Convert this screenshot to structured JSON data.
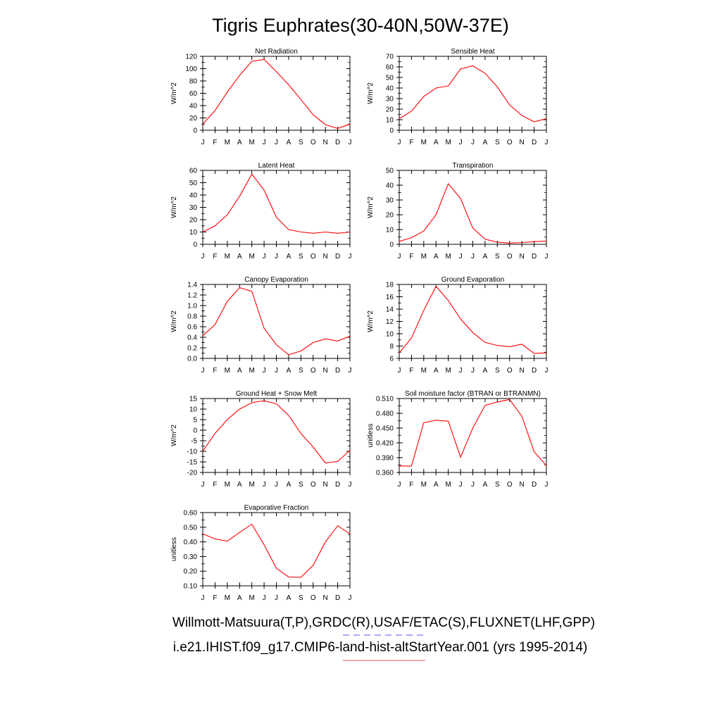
{
  "figure": {
    "title": "Tigris Euphrates(30-40N,50W-37E)",
    "footer_line1": "Willmott-Matsuura(T,P),GRDC(R),USAF/ETAC(S),FLUXNET(LHF,GPP)",
    "footer_line2": "i.e21.IHIST.f09_g17.CMIP6-land-hist-altStartYear.001 (yrs 1995-2014)",
    "footer_line1_style": "dashed",
    "footer_line2_style": "solid",
    "footer_line1_color": "#7777ee",
    "footer_line2_color": "#ee7777",
    "line_color": "#ff0000"
  },
  "chart_data": [
    {
      "type": "line",
      "title": "Net Radiation",
      "ylabel": "W/m^2",
      "categories": [
        "J",
        "F",
        "M",
        "A",
        "M",
        "J",
        "J",
        "A",
        "S",
        "O",
        "N",
        "D",
        "J"
      ],
      "yticks": [
        "0",
        "20",
        "40",
        "60",
        "80",
        "100",
        "120"
      ],
      "ylim": [
        0,
        120
      ],
      "values": [
        10,
        32,
        62,
        89,
        112,
        115,
        95,
        74,
        50,
        25,
        9,
        3,
        10
      ]
    },
    {
      "type": "line",
      "title": "Sensible Heat",
      "ylabel": "W/m^2",
      "categories": [
        "J",
        "F",
        "M",
        "A",
        "M",
        "J",
        "J",
        "A",
        "S",
        "O",
        "N",
        "D",
        "J"
      ],
      "yticks": [
        "0",
        "10",
        "20",
        "30",
        "40",
        "50",
        "60",
        "70"
      ],
      "ylim": [
        0,
        70
      ],
      "values": [
        11,
        18,
        32,
        40,
        42,
        58,
        61,
        54,
        41,
        24,
        14,
        8,
        11
      ]
    },
    {
      "type": "line",
      "title": "Latent Heat",
      "ylabel": "W/m^2",
      "categories": [
        "J",
        "F",
        "M",
        "A",
        "M",
        "J",
        "J",
        "A",
        "S",
        "O",
        "N",
        "D",
        "J"
      ],
      "yticks": [
        "0",
        "10",
        "20",
        "30",
        "40",
        "50",
        "60"
      ],
      "ylim": [
        0,
        60
      ],
      "values": [
        10,
        15,
        24,
        39,
        57,
        44,
        22,
        12,
        10,
        9,
        10,
        9,
        10
      ]
    },
    {
      "type": "line",
      "title": "Transpiration",
      "ylabel": "W/m^2",
      "categories": [
        "J",
        "F",
        "M",
        "A",
        "M",
        "J",
        "J",
        "A",
        "S",
        "O",
        "N",
        "D",
        "J"
      ],
      "yticks": [
        "0",
        "10",
        "20",
        "30",
        "40",
        "50"
      ],
      "ylim": [
        0,
        50
      ],
      "values": [
        2,
        4.5,
        9,
        20,
        41,
        31,
        11,
        3.5,
        1.5,
        0.8,
        1.2,
        1.8,
        2.2
      ]
    },
    {
      "type": "line",
      "title": "Canopy Evaporation",
      "ylabel": "W/m^2",
      "categories": [
        "J",
        "F",
        "M",
        "A",
        "M",
        "J",
        "J",
        "A",
        "S",
        "O",
        "N",
        "D",
        "J"
      ],
      "yticks": [
        "0.0",
        "0.2",
        "0.4",
        "0.6",
        "0.8",
        "1.0",
        "1.2",
        "1.4"
      ],
      "ylim": [
        0,
        1.4
      ],
      "values": [
        0.43,
        0.64,
        1.08,
        1.34,
        1.27,
        0.57,
        0.26,
        0.07,
        0.14,
        0.3,
        0.37,
        0.33,
        0.42
      ]
    },
    {
      "type": "line",
      "title": "Ground Evaporation",
      "ylabel": "W/m^2",
      "categories": [
        "J",
        "F",
        "M",
        "A",
        "M",
        "J",
        "J",
        "A",
        "S",
        "O",
        "N",
        "D",
        "J"
      ],
      "yticks": [
        "6",
        "8",
        "10",
        "12",
        "14",
        "16",
        "18"
      ],
      "ylim": [
        6,
        18
      ],
      "values": [
        6.9,
        9.3,
        13.8,
        17.7,
        15.4,
        12.4,
        10.2,
        8.6,
        8.1,
        7.9,
        8.3,
        6.8,
        6.9
      ]
    },
    {
      "type": "line",
      "title": "Ground Heat + Snow Melt",
      "ylabel": "W/m^2",
      "categories": [
        "J",
        "F",
        "M",
        "A",
        "M",
        "J",
        "J",
        "A",
        "S",
        "O",
        "N",
        "D",
        "J"
      ],
      "yticks": [
        "-20",
        "-15",
        "-10",
        "-5",
        "0",
        "5",
        "10",
        "15"
      ],
      "ylim": [
        -20,
        15
      ],
      "values": [
        -10,
        -1.5,
        5,
        10,
        13,
        14,
        12.5,
        7,
        -1.5,
        -8,
        -15.5,
        -14.8,
        -9.5
      ]
    },
    {
      "type": "line",
      "title": "Soil moisture factor (BTRAN or BTRANMN)",
      "ylabel": "unitless",
      "categories": [
        "J",
        "F",
        "M",
        "A",
        "M",
        "J",
        "J",
        "A",
        "S",
        "O",
        "N",
        "D",
        "J"
      ],
      "yticks": [
        "0.360",
        "0.390",
        "0.420",
        "0.450",
        "0.480",
        "0.510"
      ],
      "ylim": [
        0.36,
        0.51
      ],
      "values": [
        0.373,
        0.373,
        0.461,
        0.466,
        0.464,
        0.391,
        0.45,
        0.496,
        0.503,
        0.508,
        0.474,
        0.402,
        0.374
      ]
    },
    {
      "type": "line",
      "title": "Evaporative Fraction",
      "ylabel": "unitless",
      "categories": [
        "J",
        "F",
        "M",
        "A",
        "M",
        "J",
        "J",
        "A",
        "S",
        "O",
        "N",
        "D",
        "J"
      ],
      "yticks": [
        "0.10",
        "0.20",
        "0.30",
        "0.40",
        "0.50",
        "0.60"
      ],
      "ylim": [
        0.1,
        0.6
      ],
      "values": [
        0.455,
        0.42,
        0.405,
        0.465,
        0.52,
        0.38,
        0.22,
        0.16,
        0.158,
        0.24,
        0.4,
        0.51,
        0.455
      ]
    }
  ]
}
